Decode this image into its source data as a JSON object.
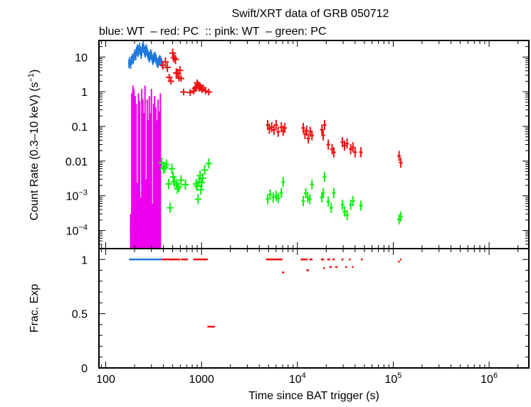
{
  "chart_data": {
    "type": "scatter",
    "title": "Swift/XRT data of GRB 050712",
    "subtitle": "blue: WT  – red: PC  :: pink: WT  – green: PC",
    "xlabel": "Time since BAT trigger (s)",
    "x_scale": "log",
    "xlim": [
      85,
      2600000
    ],
    "x_ticks": [
      {
        "value": 100,
        "label": "100"
      },
      {
        "value": 1000,
        "label": "1000"
      },
      {
        "value": 10000,
        "label": "10",
        "sup": "4"
      },
      {
        "value": 100000,
        "label": "10",
        "sup": "5"
      },
      {
        "value": 1000000,
        "label": "10",
        "sup": "6"
      }
    ],
    "top_panel": {
      "ylabel": "Count Rate (0.3–10 keV) (s",
      "ylabel_sup": "−1",
      "ylabel_end": ")",
      "y_scale": "log",
      "ylim": [
        3e-05,
        30
      ],
      "y_ticks": [
        {
          "value": 10,
          "label": "10"
        },
        {
          "value": 1,
          "label": "1"
        },
        {
          "value": 0.1,
          "label": "0.1"
        },
        {
          "value": 0.01,
          "label": "0.01"
        },
        {
          "value": 0.001,
          "label": "10",
          "sup": "−3"
        },
        {
          "value": 0.0001,
          "label": "10",
          "sup": "−4"
        }
      ],
      "series": [
        {
          "color": "#1f78d8",
          "mode": "WT",
          "points": [
            [
              175,
              6.5
            ],
            [
              178,
              7.5
            ],
            [
              182,
              6.2
            ],
            [
              186,
              8.0
            ],
            [
              190,
              9.2
            ],
            [
              194,
              8.4
            ],
            [
              198,
              10.5
            ],
            [
              202,
              12.5
            ],
            [
              206,
              11.0
            ],
            [
              210,
              14.5
            ],
            [
              214,
              17.0
            ],
            [
              218,
              13.5
            ],
            [
              222,
              16.0
            ],
            [
              226,
              19.0
            ],
            [
              230,
              15.0
            ],
            [
              234,
              12.0
            ],
            [
              238,
              14.5
            ],
            [
              242,
              18.0
            ],
            [
              246,
              21.0
            ],
            [
              250,
              17.5
            ],
            [
              254,
              15.0
            ],
            [
              258,
              13.0
            ],
            [
              262,
              15.5
            ],
            [
              266,
              17.0
            ],
            [
              270,
              14.0
            ],
            [
              275,
              12.0
            ],
            [
              280,
              10.5
            ],
            [
              285,
              9.5
            ],
            [
              290,
              10.8
            ],
            [
              295,
              12.5
            ],
            [
              300,
              11.0
            ],
            [
              306,
              9.0
            ],
            [
              312,
              8.0
            ],
            [
              318,
              9.4
            ],
            [
              324,
              10.5
            ],
            [
              330,
              9.8
            ],
            [
              336,
              8.5
            ],
            [
              342,
              7.2
            ],
            [
              350,
              6.5
            ],
            [
              358,
              7.6
            ],
            [
              366,
              8.4
            ],
            [
              374,
              7.8
            ],
            [
              382,
              6.8
            ]
          ]
        },
        {
          "color": "#ee1111",
          "mode": "PC",
          "points": [
            [
              395,
              5.8
            ],
            [
              420,
              7.2
            ],
            [
              440,
              5.0
            ],
            [
              460,
              2.6
            ],
            [
              480,
              2.0
            ],
            [
              500,
              13.0
            ],
            [
              515,
              9.5
            ],
            [
              535,
              8.5
            ],
            [
              545,
              3.5
            ],
            [
              565,
              3.4
            ],
            [
              580,
              2.5
            ],
            [
              595,
              4.1
            ],
            [
              610,
              2.4
            ],
            [
              650,
              0.98
            ],
            [
              760,
              0.95
            ],
            [
              830,
              1.05
            ],
            [
              860,
              1.25
            ],
            [
              880,
              1.35
            ],
            [
              900,
              1.8
            ],
            [
              920,
              1.6
            ],
            [
              940,
              1.25
            ],
            [
              960,
              1.5
            ],
            [
              980,
              1.3
            ],
            [
              1010,
              1.15
            ],
            [
              1040,
              1.3
            ],
            [
              1100,
              1.05
            ],
            [
              1190,
              0.98
            ],
            [
              4900,
              0.11
            ],
            [
              5100,
              0.085
            ],
            [
              5400,
              0.095
            ],
            [
              5700,
              0.08
            ],
            [
              6000,
              0.11
            ],
            [
              6300,
              0.07
            ],
            [
              6800,
              0.095
            ],
            [
              7100,
              0.075
            ],
            [
              7400,
              0.09
            ],
            [
              11500,
              0.09
            ],
            [
              12000,
              0.06
            ],
            [
              12500,
              0.075
            ],
            [
              13000,
              0.045
            ],
            [
              13600,
              0.07
            ],
            [
              14200,
              0.055
            ],
            [
              18000,
              0.08
            ],
            [
              18600,
              0.055
            ],
            [
              19200,
              0.11
            ],
            [
              21000,
              0.03
            ],
            [
              23000,
              0.022
            ],
            [
              24000,
              0.018
            ],
            [
              29500,
              0.035
            ],
            [
              31000,
              0.028
            ],
            [
              33000,
              0.032
            ],
            [
              36000,
              0.022
            ],
            [
              38000,
              0.025
            ],
            [
              40000,
              0.018
            ],
            [
              46000,
              0.018
            ],
            [
              115000,
              0.014
            ],
            [
              120000,
              0.009
            ]
          ]
        },
        {
          "color": "#ee00ee",
          "mode": "WT",
          "points": [
            [
              182,
              0.0001
            ],
            [
              187,
              0.3
            ],
            [
              192,
              0.5
            ],
            [
              197,
              0.4
            ],
            [
              203,
              0.25
            ],
            [
              208,
              0.15
            ],
            [
              214,
              0.0008
            ],
            [
              220,
              0.3
            ],
            [
              226,
              0.18
            ],
            [
              232,
              0.0003
            ],
            [
              238,
              0.4
            ],
            [
              244,
              0.2
            ],
            [
              250,
              0.08
            ],
            [
              257,
              0.5
            ],
            [
              264,
              0.001
            ],
            [
              271,
              0.2
            ],
            [
              278,
              0.05
            ],
            [
              285,
              0.25
            ],
            [
              292,
              0.08
            ],
            [
              300,
              0.4
            ],
            [
              308,
              0.0002
            ],
            [
              316,
              0.15
            ],
            [
              324,
              0.25
            ],
            [
              333,
              0.12
            ],
            [
              342,
              0.05
            ],
            [
              352,
              0.2
            ],
            [
              362,
              0.09
            ],
            [
              372,
              0.3
            ]
          ]
        },
        {
          "color": "#11ee11",
          "mode": "PC",
          "points": [
            [
              385,
              0.009
            ],
            [
              400,
              0.006
            ],
            [
              415,
              0.0065
            ],
            [
              430,
              0.008
            ],
            [
              455,
              0.0022
            ],
            [
              470,
              0.00045
            ],
            [
              490,
              0.006
            ],
            [
              505,
              0.0035
            ],
            [
              520,
              0.0025
            ],
            [
              545,
              0.0022
            ],
            [
              560,
              0.0016
            ],
            [
              580,
              0.0018
            ],
            [
              610,
              0.0028
            ],
            [
              680,
              0.0021
            ],
            [
              880,
              0.0022
            ],
            [
              900,
              0.0019
            ],
            [
              920,
              0.0008
            ],
            [
              940,
              0.0025
            ],
            [
              965,
              0.0038
            ],
            [
              985,
              0.0015
            ],
            [
              1005,
              0.0024
            ],
            [
              1030,
              0.0032
            ],
            [
              1080,
              0.0055
            ],
            [
              1190,
              0.0085
            ],
            [
              4900,
              0.0008
            ],
            [
              5200,
              0.0011
            ],
            [
              5600,
              0.0009
            ],
            [
              6000,
              0.001
            ],
            [
              6300,
              0.00085
            ],
            [
              6800,
              0.0012
            ],
            [
              7100,
              0.0025
            ],
            [
              11500,
              0.0007
            ],
            [
              12200,
              0.0012
            ],
            [
              12800,
              0.0009
            ],
            [
              13500,
              0.0008
            ],
            [
              14200,
              0.0021
            ],
            [
              18000,
              0.0009
            ],
            [
              18600,
              0.0012
            ],
            [
              19200,
              0.0035
            ],
            [
              21000,
              0.00068
            ],
            [
              22500,
              0.00045
            ],
            [
              24000,
              0.0012
            ],
            [
              29500,
              0.00055
            ],
            [
              31000,
              0.00035
            ],
            [
              33000,
              0.00028
            ],
            [
              36000,
              0.00055
            ],
            [
              38000,
              0.0007
            ],
            [
              46000,
              0.00052
            ],
            [
              115000,
              0.00021
            ],
            [
              120000,
              0.00025
            ]
          ]
        }
      ]
    },
    "bottom_panel": {
      "ylabel": "Frac. Exp",
      "ylim": [
        0,
        1.1
      ],
      "y_ticks": [
        {
          "value": 1,
          "label": "1"
        },
        {
          "value": 0.5,
          "label": "0.5"
        },
        {
          "value": 0,
          "label": "0"
        }
      ],
      "segments": [
        {
          "color": "#1f78d8",
          "x0": 175,
          "x1": 385,
          "y": 1
        },
        {
          "color": "#ee1111",
          "x0": 385,
          "x1": 600,
          "y": 1
        },
        {
          "color": "#ee1111",
          "x0": 610,
          "x1": 720,
          "y": 1
        },
        {
          "color": "#ee1111",
          "x0": 820,
          "x1": 1160,
          "y": 1
        },
        {
          "color": "#ee1111",
          "x0": 1150,
          "x1": 1380,
          "y": 0.38
        },
        {
          "color": "#ee1111",
          "x0": 4700,
          "x1": 7000,
          "y": 1
        },
        {
          "color": "#ee1111",
          "x0": 6900,
          "x1": 7300,
          "y": 0.88
        },
        {
          "color": "#ee1111",
          "x0": 10800,
          "x1": 12800,
          "y": 1
        },
        {
          "color": "#ee1111",
          "x0": 12400,
          "x1": 13200,
          "y": 0.9
        },
        {
          "color": "#ee1111",
          "x0": 13300,
          "x1": 14400,
          "y": 1
        },
        {
          "color": "#ee1111",
          "x0": 17600,
          "x1": 19000,
          "y": 1
        },
        {
          "color": "#ee1111",
          "x0": 18600,
          "x1": 19400,
          "y": 0.92
        },
        {
          "color": "#ee1111",
          "x0": 20500,
          "x1": 22000,
          "y": 1
        },
        {
          "color": "#ee1111",
          "x0": 21500,
          "x1": 22800,
          "y": 0.93
        },
        {
          "color": "#ee1111",
          "x0": 23200,
          "x1": 24500,
          "y": 1
        },
        {
          "color": "#ee1111",
          "x0": 24800,
          "x1": 26200,
          "y": 0.93
        },
        {
          "color": "#ee1111",
          "x0": 28800,
          "x1": 30200,
          "y": 1
        },
        {
          "color": "#ee1111",
          "x0": 31500,
          "x1": 33000,
          "y": 0.93
        },
        {
          "color": "#ee1111",
          "x0": 34500,
          "x1": 36000,
          "y": 1
        },
        {
          "color": "#ee1111",
          "x0": 37000,
          "x1": 38500,
          "y": 0.93
        },
        {
          "color": "#ee1111",
          "x0": 46000,
          "x1": 48000,
          "y": 1
        },
        {
          "color": "#ee1111",
          "x0": 112000,
          "x1": 117000,
          "y": 0.98
        },
        {
          "color": "#ee1111",
          "x0": 117500,
          "x1": 122000,
          "y": 1
        }
      ]
    }
  }
}
